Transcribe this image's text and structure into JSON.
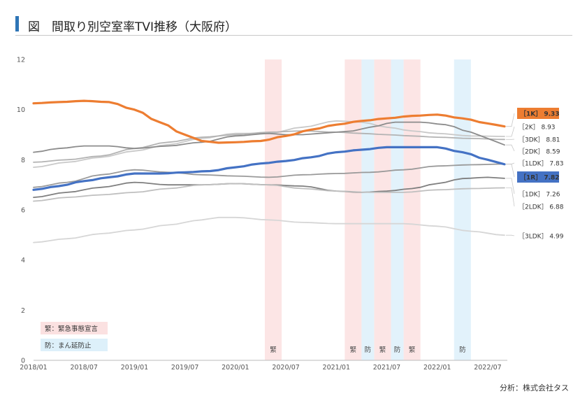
{
  "header": {
    "title": "図　間取り別空室率TVI推移（大阪府）"
  },
  "credit": "分析：株式会社タス",
  "chart_data": {
    "type": "line",
    "title": "図　間取り別空室率TVI推移（大阪府）",
    "xlabel": "",
    "ylabel": "",
    "ylim": [
      0,
      12
    ],
    "yticks": [
      0,
      2,
      4,
      6,
      8,
      10,
      12
    ],
    "x_start": "2018/01",
    "x_end": "2022/08",
    "x_tick_labels": [
      "2018/01",
      "2018/07",
      "2019/01",
      "2019/07",
      "2020/01",
      "2020/07",
      "2021/01",
      "2021/07",
      "2022/01",
      "2022/07"
    ],
    "grid": false,
    "series": [
      {
        "name": "［1K］",
        "end_label": "［1K］ 9.33",
        "color": "#ed7d31",
        "width": 3.2,
        "highlight": true,
        "anchors": [
          [
            0,
            10.25
          ],
          [
            3,
            10.3
          ],
          [
            6,
            10.35
          ],
          [
            9,
            10.3
          ],
          [
            12,
            10.0
          ],
          [
            15,
            9.5
          ],
          [
            18,
            9.0
          ],
          [
            20,
            8.75
          ],
          [
            22,
            8.68
          ],
          [
            24,
            8.7
          ],
          [
            27,
            8.75
          ],
          [
            30,
            8.95
          ],
          [
            33,
            9.2
          ],
          [
            36,
            9.4
          ],
          [
            39,
            9.55
          ],
          [
            42,
            9.65
          ],
          [
            45,
            9.75
          ],
          [
            48,
            9.8
          ],
          [
            51,
            9.65
          ],
          [
            54,
            9.45
          ],
          [
            56,
            9.33
          ]
        ]
      },
      {
        "name": "［2K］",
        "end_label": "［2K］ 8.93",
        "color": "#c9c9c9",
        "width": 1.8,
        "anchors": [
          [
            0,
            7.7
          ],
          [
            4,
            7.9
          ],
          [
            8,
            8.1
          ],
          [
            12,
            8.35
          ],
          [
            16,
            8.6
          ],
          [
            20,
            8.85
          ],
          [
            24,
            9.05
          ],
          [
            28,
            9.05
          ],
          [
            32,
            9.3
          ],
          [
            36,
            9.55
          ],
          [
            39,
            9.5
          ],
          [
            42,
            9.3
          ],
          [
            45,
            9.15
          ],
          [
            48,
            9.05
          ],
          [
            52,
            8.95
          ],
          [
            56,
            8.93
          ]
        ]
      },
      {
        "name": "［3DK］",
        "end_label": "［3DK］ 8.81",
        "color": "#b3b3b3",
        "width": 1.8,
        "anchors": [
          [
            0,
            7.9
          ],
          [
            4,
            8.0
          ],
          [
            8,
            8.15
          ],
          [
            12,
            8.45
          ],
          [
            16,
            8.7
          ],
          [
            20,
            8.9
          ],
          [
            24,
            9.0
          ],
          [
            28,
            9.1
          ],
          [
            32,
            9.15
          ],
          [
            36,
            9.1
          ],
          [
            39,
            9.05
          ],
          [
            42,
            9.0
          ],
          [
            45,
            8.95
          ],
          [
            48,
            8.9
          ],
          [
            52,
            8.85
          ],
          [
            56,
            8.81
          ]
        ]
      },
      {
        "name": "［2DK］",
        "end_label": "［2DK］ 8.59",
        "color": "#8c8c8c",
        "width": 1.8,
        "anchors": [
          [
            0,
            8.3
          ],
          [
            3,
            8.45
          ],
          [
            6,
            8.55
          ],
          [
            9,
            8.55
          ],
          [
            12,
            8.45
          ],
          [
            16,
            8.55
          ],
          [
            20,
            8.7
          ],
          [
            24,
            8.95
          ],
          [
            28,
            9.05
          ],
          [
            30,
            9.0
          ],
          [
            32,
            9.0
          ],
          [
            34,
            9.05
          ],
          [
            36,
            9.1
          ],
          [
            38,
            9.15
          ],
          [
            40,
            9.3
          ],
          [
            43,
            9.5
          ],
          [
            46,
            9.5
          ],
          [
            49,
            9.4
          ],
          [
            52,
            9.1
          ],
          [
            54,
            8.85
          ],
          [
            56,
            8.59
          ]
        ]
      },
      {
        "name": "［1LDK］",
        "end_label": "［1LDK］ 7.83",
        "color": "#9a9a9a",
        "width": 1.8,
        "anchors": [
          [
            0,
            6.9
          ],
          [
            4,
            7.1
          ],
          [
            8,
            7.4
          ],
          [
            12,
            7.6
          ],
          [
            16,
            7.5
          ],
          [
            20,
            7.4
          ],
          [
            24,
            7.35
          ],
          [
            28,
            7.3
          ],
          [
            32,
            7.4
          ],
          [
            36,
            7.45
          ],
          [
            40,
            7.5
          ],
          [
            44,
            7.6
          ],
          [
            48,
            7.75
          ],
          [
            52,
            7.8
          ],
          [
            56,
            7.83
          ]
        ]
      },
      {
        "name": "［1R］",
        "end_label": "［1R］ 7.82",
        "color": "#4472c4",
        "width": 3.2,
        "highlight": true,
        "anchors": [
          [
            0,
            6.8
          ],
          [
            3,
            6.95
          ],
          [
            6,
            7.15
          ],
          [
            9,
            7.3
          ],
          [
            12,
            7.45
          ],
          [
            15,
            7.45
          ],
          [
            18,
            7.5
          ],
          [
            21,
            7.55
          ],
          [
            24,
            7.7
          ],
          [
            27,
            7.85
          ],
          [
            30,
            7.95
          ],
          [
            33,
            8.1
          ],
          [
            36,
            8.3
          ],
          [
            39,
            8.4
          ],
          [
            42,
            8.5
          ],
          [
            45,
            8.5
          ],
          [
            48,
            8.5
          ],
          [
            51,
            8.3
          ],
          [
            54,
            8.0
          ],
          [
            56,
            7.82
          ]
        ]
      },
      {
        "name": "［1DK］",
        "end_label": "［1DK］ 7.26",
        "color": "#7f7f7f",
        "width": 1.8,
        "anchors": [
          [
            0,
            6.5
          ],
          [
            4,
            6.7
          ],
          [
            8,
            6.9
          ],
          [
            12,
            7.1
          ],
          [
            16,
            7.0
          ],
          [
            20,
            7.0
          ],
          [
            24,
            7.05
          ],
          [
            28,
            7.0
          ],
          [
            32,
            6.95
          ],
          [
            36,
            6.75
          ],
          [
            39,
            6.7
          ],
          [
            42,
            6.75
          ],
          [
            45,
            6.85
          ],
          [
            48,
            7.05
          ],
          [
            51,
            7.25
          ],
          [
            54,
            7.3
          ],
          [
            56,
            7.26
          ]
        ]
      },
      {
        "name": "［2LDK］",
        "end_label": "［2LDK］ 6.88",
        "color": "#bfbfbf",
        "width": 1.8,
        "anchors": [
          [
            0,
            6.35
          ],
          [
            4,
            6.5
          ],
          [
            8,
            6.6
          ],
          [
            12,
            6.7
          ],
          [
            16,
            6.85
          ],
          [
            20,
            7.0
          ],
          [
            24,
            7.05
          ],
          [
            28,
            7.0
          ],
          [
            32,
            6.85
          ],
          [
            36,
            6.75
          ],
          [
            40,
            6.7
          ],
          [
            44,
            6.7
          ],
          [
            48,
            6.8
          ],
          [
            52,
            6.85
          ],
          [
            56,
            6.88
          ]
        ]
      },
      {
        "name": "［3LDK］",
        "end_label": "［3LDK］ 4.99",
        "color": "#d6d6d6",
        "width": 1.8,
        "anchors": [
          [
            0,
            4.7
          ],
          [
            4,
            4.85
          ],
          [
            8,
            5.05
          ],
          [
            12,
            5.2
          ],
          [
            16,
            5.4
          ],
          [
            20,
            5.6
          ],
          [
            22,
            5.7
          ],
          [
            24,
            5.7
          ],
          [
            28,
            5.6
          ],
          [
            32,
            5.5
          ],
          [
            36,
            5.45
          ],
          [
            40,
            5.45
          ],
          [
            44,
            5.45
          ],
          [
            48,
            5.35
          ],
          [
            52,
            5.15
          ],
          [
            56,
            4.99
          ]
        ]
      }
    ],
    "bands": [
      {
        "type": "emergency",
        "label": "緊",
        "start": 27.5,
        "end": 29.5
      },
      {
        "type": "emergency",
        "label": "緊",
        "start": 37.0,
        "end": 39.0
      },
      {
        "type": "prevention",
        "label": "防",
        "start": 39.0,
        "end": 40.5
      },
      {
        "type": "emergency",
        "label": "緊",
        "start": 40.5,
        "end": 42.5
      },
      {
        "type": "prevention",
        "label": "防",
        "start": 42.5,
        "end": 44.0
      },
      {
        "type": "emergency",
        "label": "緊",
        "start": 44.0,
        "end": 46.0
      },
      {
        "type": "prevention",
        "label": "防",
        "start": 50.0,
        "end": 52.0
      }
    ],
    "legend": {
      "placement": "bottom-left",
      "items": [
        {
          "type": "emergency",
          "label": "緊：緊急事態宣言"
        },
        {
          "type": "prevention",
          "label": "防：まん延防止"
        }
      ]
    },
    "colors": {
      "emergency": "#fbe1e1",
      "prevention": "#ddf0fa"
    }
  }
}
